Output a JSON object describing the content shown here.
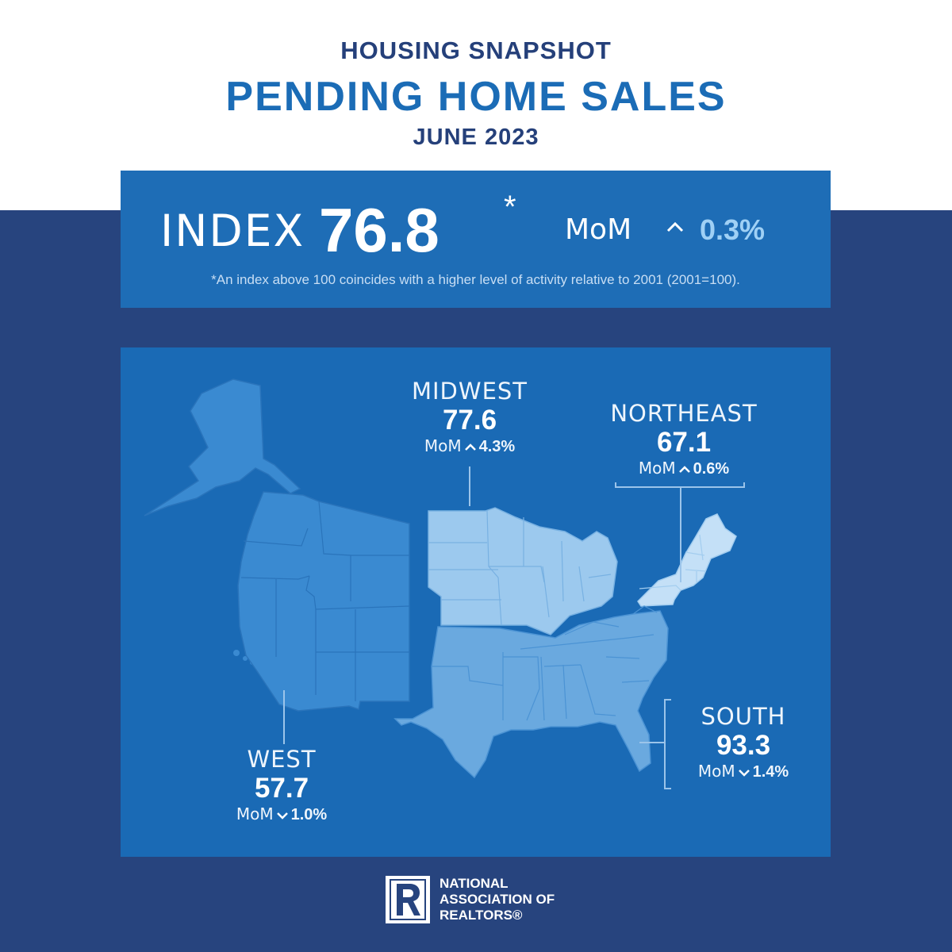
{
  "header": {
    "kicker": "HOUSING SNAPSHOT",
    "title": "PENDING HOME SALES",
    "period": "JUNE 2023"
  },
  "index": {
    "label": "INDEX",
    "value": "76.8",
    "asterisk": "*",
    "mom_label": "MoM",
    "mom_direction": "up",
    "mom_value": "0.3%",
    "footnote": "*An index above 100 coincides with a higher level of activity relative to 2001 (2001=100)."
  },
  "regions": {
    "midwest": {
      "name": "MIDWEST",
      "value": "77.6",
      "mom_label": "MoM",
      "direction": "up",
      "change": "4.3%"
    },
    "northeast": {
      "name": "NORTHEAST",
      "value": "67.1",
      "mom_label": "MoM",
      "direction": "up",
      "change": "0.6%"
    },
    "south": {
      "name": "SOUTH",
      "value": "93.3",
      "mom_label": "MoM",
      "direction": "down",
      "change": "1.4%"
    },
    "west": {
      "name": "WEST",
      "value": "57.7",
      "mom_label": "MoM",
      "direction": "down",
      "change": "1.0%"
    }
  },
  "logo": {
    "lines": [
      "NATIONAL",
      "ASSOCIATION OF",
      "REALTORS®"
    ]
  },
  "colors": {
    "navy_background": "#27447e",
    "panel_blue": "#1e6db6",
    "west_fill": "#3a8ad1",
    "south_fill": "#6aa9df",
    "midwest_fill": "#9cc9ee",
    "northeast_fill": "#c4e0f7",
    "accent_value": "#9fd0f5"
  },
  "icons": {
    "up": "chevron-up-icon",
    "down": "chevron-down-icon"
  }
}
